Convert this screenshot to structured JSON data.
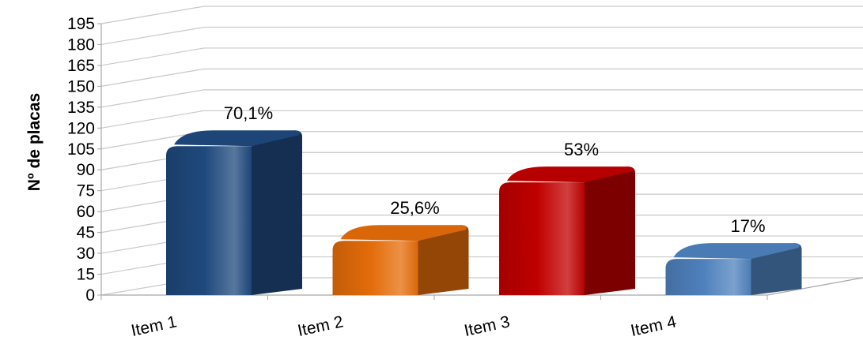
{
  "chart_data": {
    "type": "bar",
    "title": "",
    "xlabel": "",
    "ylabel": "Nº  de placas",
    "ylim": [
      0,
      195
    ],
    "yticks": [
      0,
      15,
      30,
      45,
      60,
      75,
      90,
      105,
      120,
      135,
      150,
      165,
      180,
      195
    ],
    "categories": [
      "Item 1",
      "Item 2",
      "Item 3",
      "Item 4"
    ],
    "values": [
      107,
      39,
      81,
      26
    ],
    "data_labels": [
      "70,1%",
      "25,6%",
      "53%",
      "17%"
    ],
    "colors": [
      "#1f497d",
      "#e46c0a",
      "#c00000",
      "#4f81bd"
    ],
    "grid": true,
    "legend": "none"
  }
}
